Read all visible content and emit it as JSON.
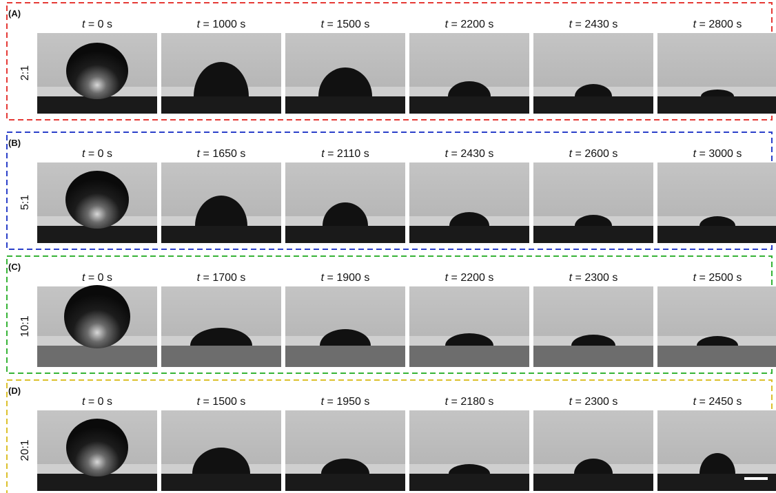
{
  "panels": [
    {
      "label": "(A)",
      "ratio": "2:1",
      "color": "#e53935",
      "times": [
        "t = 0 s",
        "t = 1000 s",
        "t = 1500 s",
        "t = 2200 s",
        "t = 2430 s",
        "t = 2800 s"
      ]
    },
    {
      "label": "(B)",
      "ratio": "5:1",
      "color": "#2a3fc9",
      "times": [
        "t = 0 s",
        "t = 1650 s",
        "t = 2110 s",
        "t = 2430 s",
        "t = 2600 s",
        "t = 3000 s"
      ]
    },
    {
      "label": "(C)",
      "ratio": "10:1",
      "color": "#35b335",
      "times": [
        "t = 0 s",
        "t = 1700 s",
        "t = 1900 s",
        "t = 2200 s",
        "t = 2300 s",
        "t = 2500 s"
      ]
    },
    {
      "label": "(D)",
      "ratio": "20:1",
      "color": "#dcc02c",
      "times": [
        "t = 0 s",
        "t = 1500 s",
        "t = 1950 s",
        "t = 2180 s",
        "t = 2300 s",
        "t = 2450 s"
      ]
    }
  ]
}
